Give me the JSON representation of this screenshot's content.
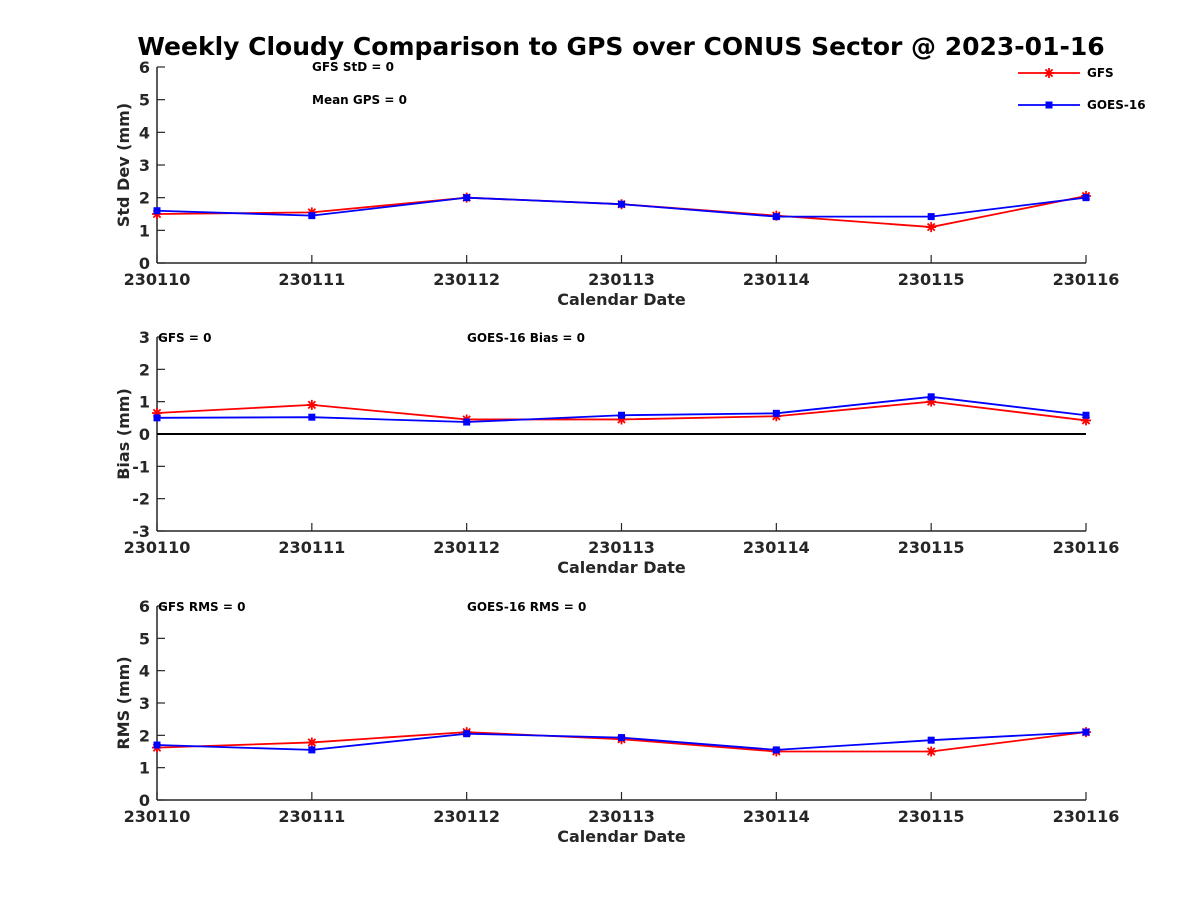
{
  "title": "Weekly Cloudy Comparison to GPS over CONUS Sector @ 2023-01-16",
  "colors": {
    "GFS": "#ff0000",
    "GOES-16": "#0000ff",
    "axis": "#262626",
    "zero_line": "#000000"
  },
  "legend": {
    "placement": "top-right",
    "entries": [
      {
        "name": "GFS",
        "marker": "asterisk"
      },
      {
        "name": "GOES-16",
        "marker": "square"
      }
    ]
  },
  "chart_data": [
    {
      "type": "line",
      "xlabel": "Calendar Date",
      "ylabel": "Std Dev (mm)",
      "ylim": [
        0,
        6
      ],
      "yticks": [
        "0",
        "1",
        "2",
        "3",
        "4",
        "5",
        "6"
      ],
      "categories": [
        "230110",
        "230111",
        "230112",
        "230113",
        "230114",
        "230115",
        "230116"
      ],
      "annotations": [
        "GFS StD = 0",
        "Mean GPS = 0"
      ],
      "zero_line": false,
      "series": [
        {
          "name": "GFS",
          "values": [
            1.5,
            1.55,
            2.0,
            1.8,
            1.45,
            1.1,
            2.05
          ]
        },
        {
          "name": "GOES-16",
          "values": [
            1.6,
            1.45,
            2.0,
            1.8,
            1.42,
            1.42,
            2.0
          ]
        }
      ]
    },
    {
      "type": "line",
      "xlabel": "Calendar Date",
      "ylabel": "Bias (mm)",
      "ylim": [
        -3,
        3
      ],
      "yticks": [
        "-3",
        "-2",
        "-1",
        "0",
        "1",
        "2",
        "3"
      ],
      "categories": [
        "230110",
        "230111",
        "230112",
        "230113",
        "230114",
        "230115",
        "230116"
      ],
      "annotations": [
        "GFS = 0",
        "GOES-16 Bias  = 0"
      ],
      "zero_line": true,
      "series": [
        {
          "name": "GFS",
          "values": [
            0.65,
            0.9,
            0.45,
            0.45,
            0.55,
            1.0,
            0.42
          ]
        },
        {
          "name": "GOES-16",
          "values": [
            0.5,
            0.52,
            0.37,
            0.58,
            0.64,
            1.15,
            0.58
          ]
        }
      ]
    },
    {
      "type": "line",
      "xlabel": "Calendar Date",
      "ylabel": "RMS (mm)",
      "ylim": [
        0,
        6
      ],
      "yticks": [
        "0",
        "1",
        "2",
        "3",
        "4",
        "5",
        "6"
      ],
      "categories": [
        "230110",
        "230111",
        "230112",
        "230113",
        "230114",
        "230115",
        "230116"
      ],
      "annotations": [
        "GFS RMS = 0",
        "GOES-16 RMS = 0"
      ],
      "zero_line": false,
      "series": [
        {
          "name": "GFS",
          "values": [
            1.62,
            1.78,
            2.1,
            1.88,
            1.5,
            1.5,
            2.1
          ]
        },
        {
          "name": "GOES-16",
          "values": [
            1.7,
            1.55,
            2.05,
            1.93,
            1.55,
            1.85,
            2.1
          ]
        }
      ]
    }
  ]
}
